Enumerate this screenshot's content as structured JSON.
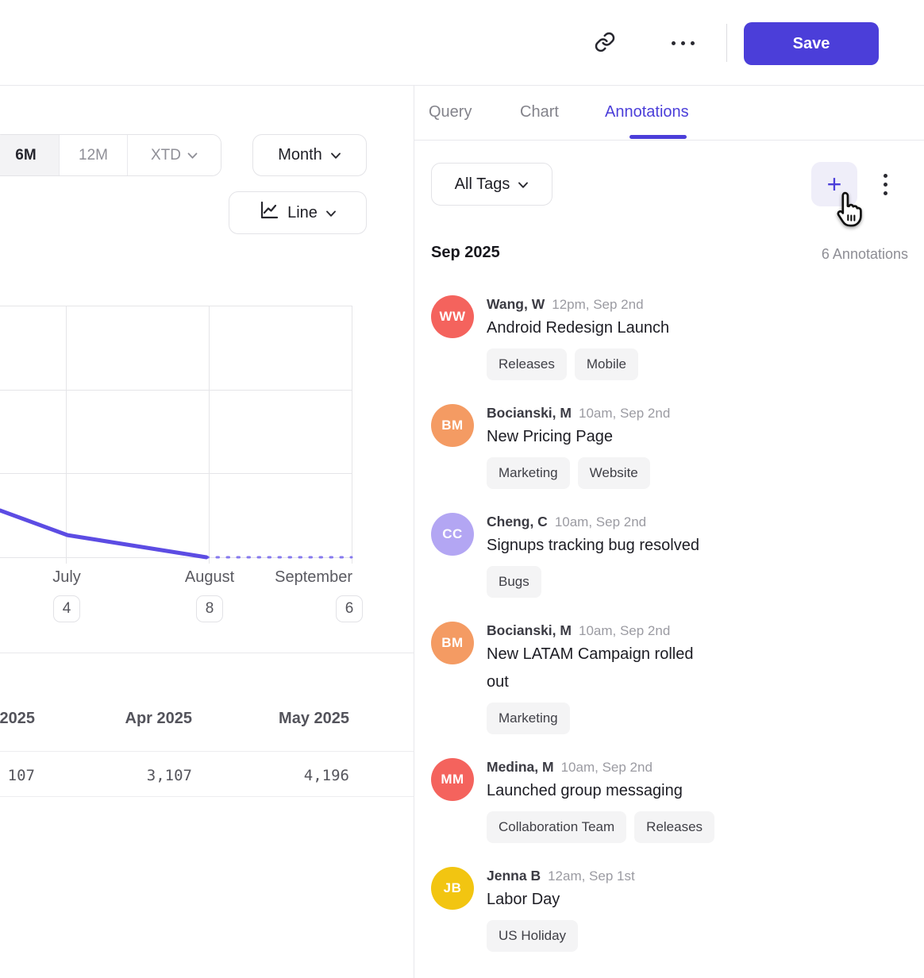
{
  "accent_color": "#4b3ed9",
  "header": {
    "save_label": "Save",
    "icons": {
      "link": "chain-link",
      "more": "horizontal-ellipsis"
    }
  },
  "tabs": [
    {
      "label": "Query",
      "active": false
    },
    {
      "label": "Chart",
      "active": false
    },
    {
      "label": "Annotations",
      "active": true
    }
  ],
  "chart_panel": {
    "range_buttons": [
      {
        "label": "6M",
        "active": true
      },
      {
        "label": "12M",
        "active": false
      },
      {
        "label": "XTD",
        "active": false,
        "has_chevron": true
      }
    ],
    "interval_label": "Month",
    "chart_type_label": "Line",
    "icons": {
      "chart_type": "line-chart",
      "chevron": "chevron-down"
    }
  },
  "chart_data": {
    "type": "line",
    "x_tick_labels": [
      "July",
      "August",
      "September"
    ],
    "annotation_counts": [
      4,
      8,
      6
    ],
    "line_color": "#5c4ce3",
    "dotted_color": "#8578ee",
    "solid_points_pct": [
      [
        0,
        81.4
      ],
      [
        19.2,
        91.2
      ],
      [
        58.7,
        100
      ]
    ],
    "dotted_points_pct": [
      [
        58.7,
        100
      ],
      [
        100,
        100
      ]
    ],
    "gridlines": {
      "vertical_x_pct": [
        18.7,
        59.4,
        100
      ],
      "horizontal_y_pct": [
        0,
        33.4,
        66.6,
        100
      ]
    },
    "summary_table": {
      "columns": [
        "2025",
        "Apr 2025",
        "May 2025"
      ],
      "values": [
        "107",
        "3,107",
        "4,196"
      ]
    }
  },
  "annotations_panel": {
    "filter_label": "All Tags",
    "add_button_glyph": "+",
    "icons": {
      "add": "plus",
      "menu": "vertical-ellipsis",
      "cursor": "hand-pointer"
    },
    "month_header": "Sep 2025",
    "count_label": "6 Annotations",
    "items": [
      {
        "initials": "WW",
        "color": "#f4635d",
        "name": "Wang, W",
        "time": "12pm, Sep 2nd",
        "title": "Android Redesign Launch",
        "tags": [
          "Releases",
          "Mobile"
        ]
      },
      {
        "initials": "BM",
        "color": "#f49b63",
        "name": "Bocianski, M",
        "time": "10am, Sep 2nd",
        "title": "New Pricing Page",
        "tags": [
          "Marketing",
          "Website"
        ]
      },
      {
        "initials": "CC",
        "color": "#b3a6f3",
        "name": "Cheng, C",
        "time": "10am, Sep 2nd",
        "title": "Signups tracking bug resolved",
        "tags": [
          "Bugs"
        ]
      },
      {
        "initials": "BM",
        "color": "#f49b63",
        "name": "Bocianski, M",
        "time": "10am, Sep 2nd",
        "title": "New LATAM Campaign rolled out",
        "tags": [
          "Marketing"
        ]
      },
      {
        "initials": "MM",
        "color": "#f4635d",
        "name": "Medina, M",
        "time": "10am, Sep 2nd",
        "title": "Launched group messaging",
        "tags": [
          "Collaboration Team",
          "Releases"
        ]
      },
      {
        "initials": "JB",
        "color": "#f2c511",
        "name": "Jenna B",
        "time": "12am, Sep 1st",
        "title": "Labor Day",
        "tags": [
          "US Holiday"
        ]
      }
    ]
  }
}
